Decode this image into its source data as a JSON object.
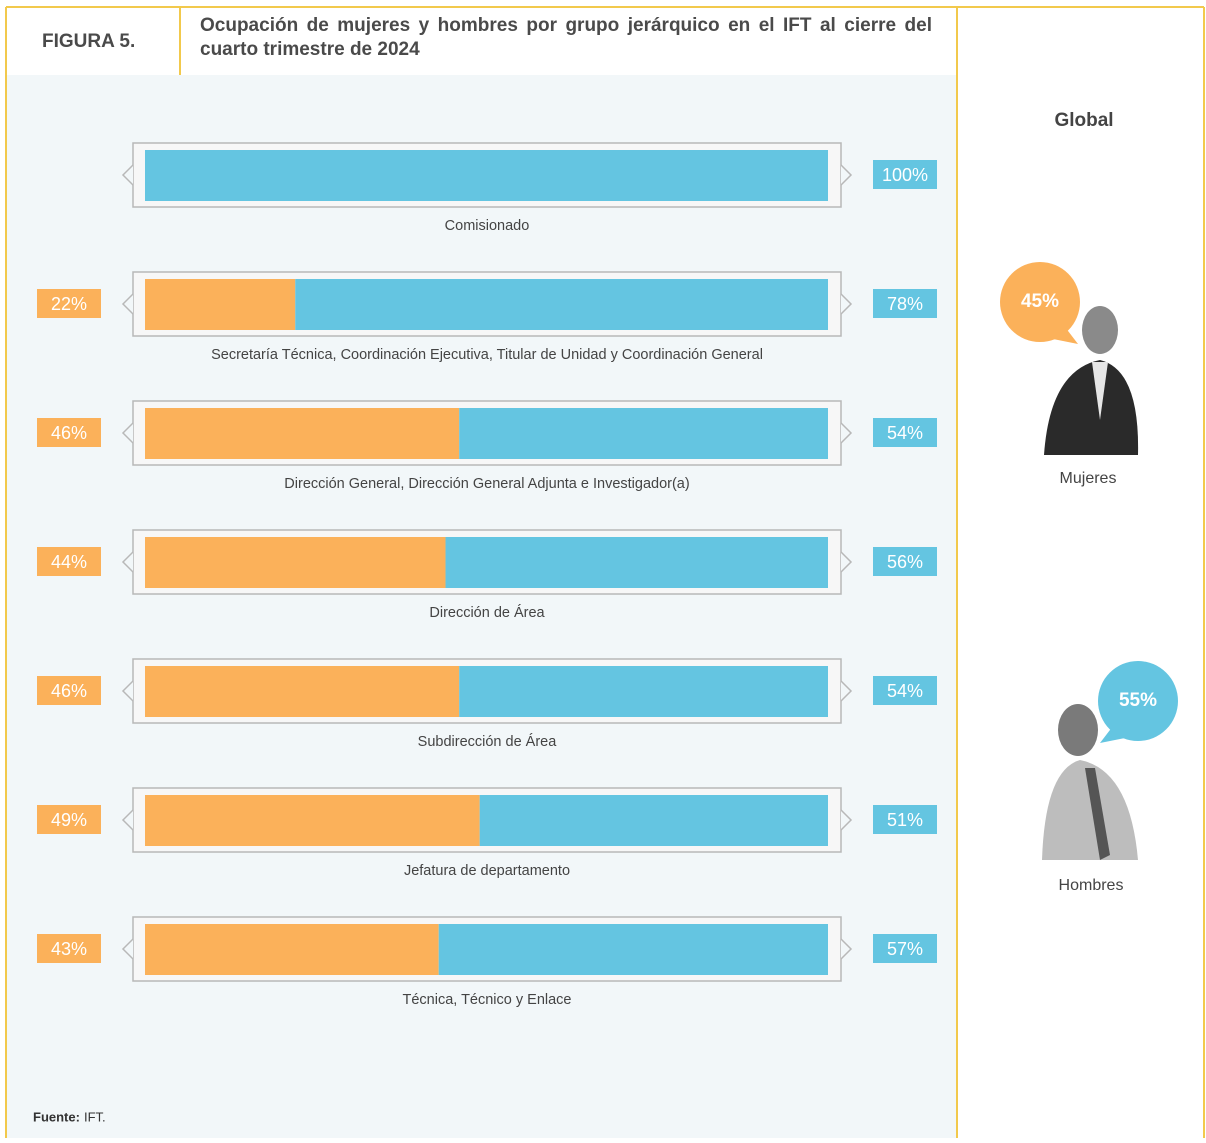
{
  "figure_label": "FIGURA 5.",
  "source_label": "Fuente:",
  "source": "IFT.",
  "chart_data": [
    {
      "type": "bar",
      "orientation": "horizontal",
      "stacked": true,
      "title": "Ocupación de mujeres y hombres por grupo jerárquico en el IFT al cierre del cuarto trimestre de 2024",
      "categories": [
        "Comisionado",
        "Secretaría Técnica, Coordinación Ejecutiva, Titular de Unidad y Coordinación General",
        "Dirección General, Dirección General Adjunta e Investigador(a)",
        "Dirección de Área",
        "Subdirección de Área",
        "Jefatura de departamento",
        "Técnica, Técnico y Enlace"
      ],
      "series": [
        {
          "name": "Mujeres",
          "color": "#fbb15a",
          "values": [
            0,
            22,
            46,
            44,
            46,
            49,
            43
          ],
          "value_labels": [
            null,
            "22%",
            "46%",
            "44%",
            "46%",
            "49%",
            "43%"
          ]
        },
        {
          "name": "Hombres",
          "color": "#64c5e1",
          "values": [
            100,
            78,
            54,
            56,
            54,
            51,
            57
          ],
          "value_labels": [
            "100%",
            "78%",
            "54%",
            "56%",
            "54%",
            "51%",
            "57%"
          ]
        }
      ]
    },
    {
      "type": "callout",
      "title": "Global",
      "categories": [
        "Mujeres",
        "Hombres"
      ],
      "values": [
        45,
        55
      ],
      "value_labels": [
        "45%",
        "55%"
      ],
      "colors": [
        "#fbb15a",
        "#64c5e1"
      ]
    }
  ]
}
